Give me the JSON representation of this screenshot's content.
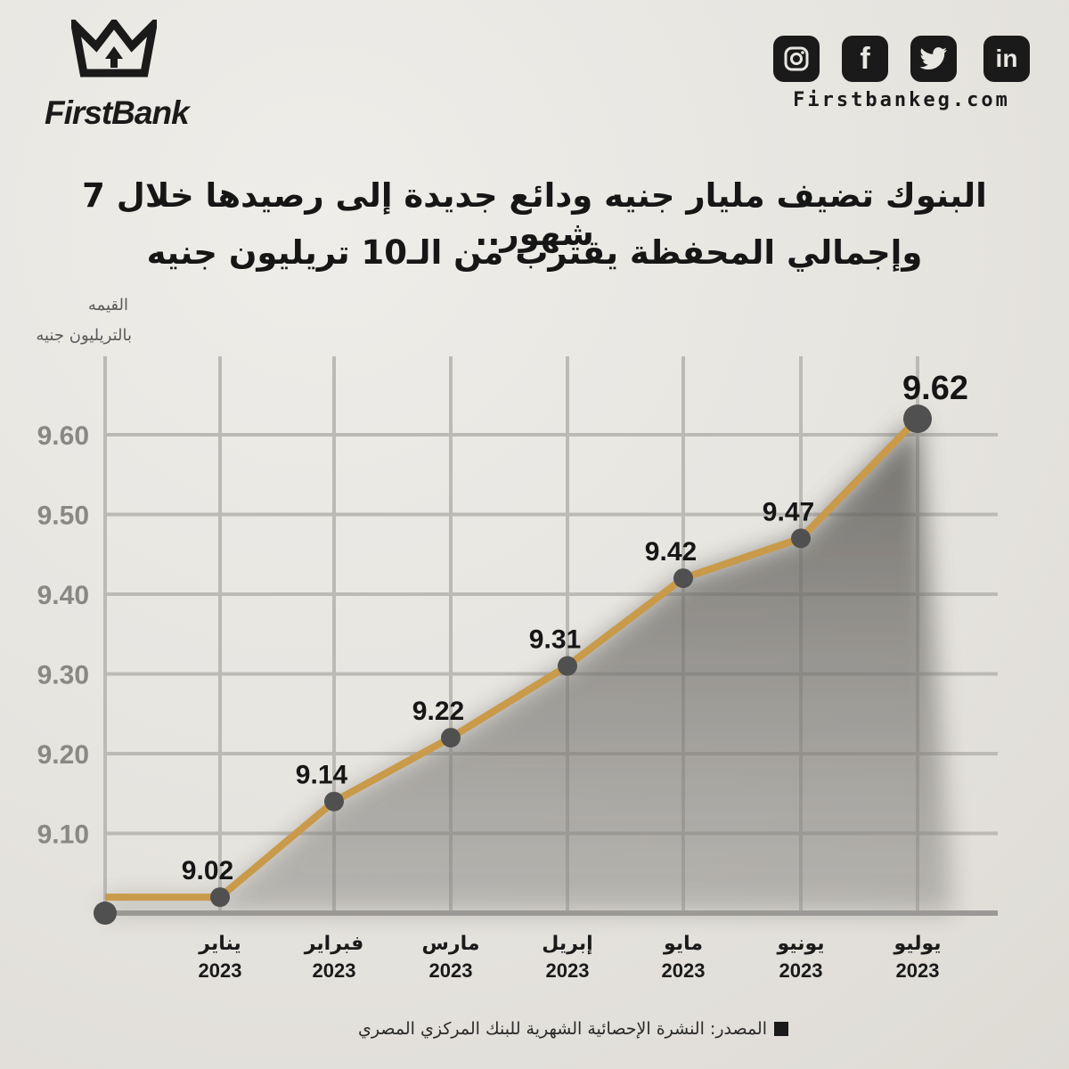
{
  "brand": {
    "name": "FirstBank",
    "website": "Firstbankeg.com"
  },
  "social": [
    {
      "icon": "instagram-icon",
      "glyph": "◎"
    },
    {
      "icon": "facebook-icon",
      "glyph": "f"
    },
    {
      "icon": "twitter-icon",
      "glyph": "🐦"
    },
    {
      "icon": "linkedin-icon",
      "glyph": "in"
    }
  ],
  "headline": {
    "line1": "البنوك تضيف مليار جنيه ودائع جديدة إلى رصيدها خلال 7 شهور..",
    "line2": "وإجمالي المحفظة يقترب من الـ10 تريليون جنيه"
  },
  "source": "المصدر: النشرة الإحصائية الشهرية للبنك المركزي المصري",
  "colors": {
    "line": "#c99a4a",
    "point": "#505050",
    "area": "#6b6965",
    "grid": "#bcbab5",
    "axis": "#9b9995"
  },
  "chart_data": {
    "type": "line",
    "ylabel_line1": "القيمه",
    "ylabel_line2": "بالتريليون جنيه",
    "ylim": [
      9.0,
      9.7
    ],
    "y_ticks": [
      9.1,
      9.2,
      9.3,
      9.4,
      9.5,
      9.6
    ],
    "y_tick_labels": [
      "9.10",
      "9.20",
      "9.30",
      "9.40",
      "9.50",
      "9.60"
    ],
    "categories": [
      {
        "month": "يناير",
        "year": "2023"
      },
      {
        "month": "فبراير",
        "year": "2023"
      },
      {
        "month": "مارس",
        "year": "2023"
      },
      {
        "month": "إبريل",
        "year": "2023"
      },
      {
        "month": "مايو",
        "year": "2023"
      },
      {
        "month": "يونيو",
        "year": "2023"
      },
      {
        "month": "يوليو",
        "year": "2023"
      }
    ],
    "values": [
      9.02,
      9.14,
      9.22,
      9.31,
      9.42,
      9.47,
      9.62
    ],
    "data_labels": [
      "9.02",
      "9.14",
      "9.22",
      "9.31",
      "9.42",
      "9.47",
      "9.62"
    ],
    "grid": true
  }
}
